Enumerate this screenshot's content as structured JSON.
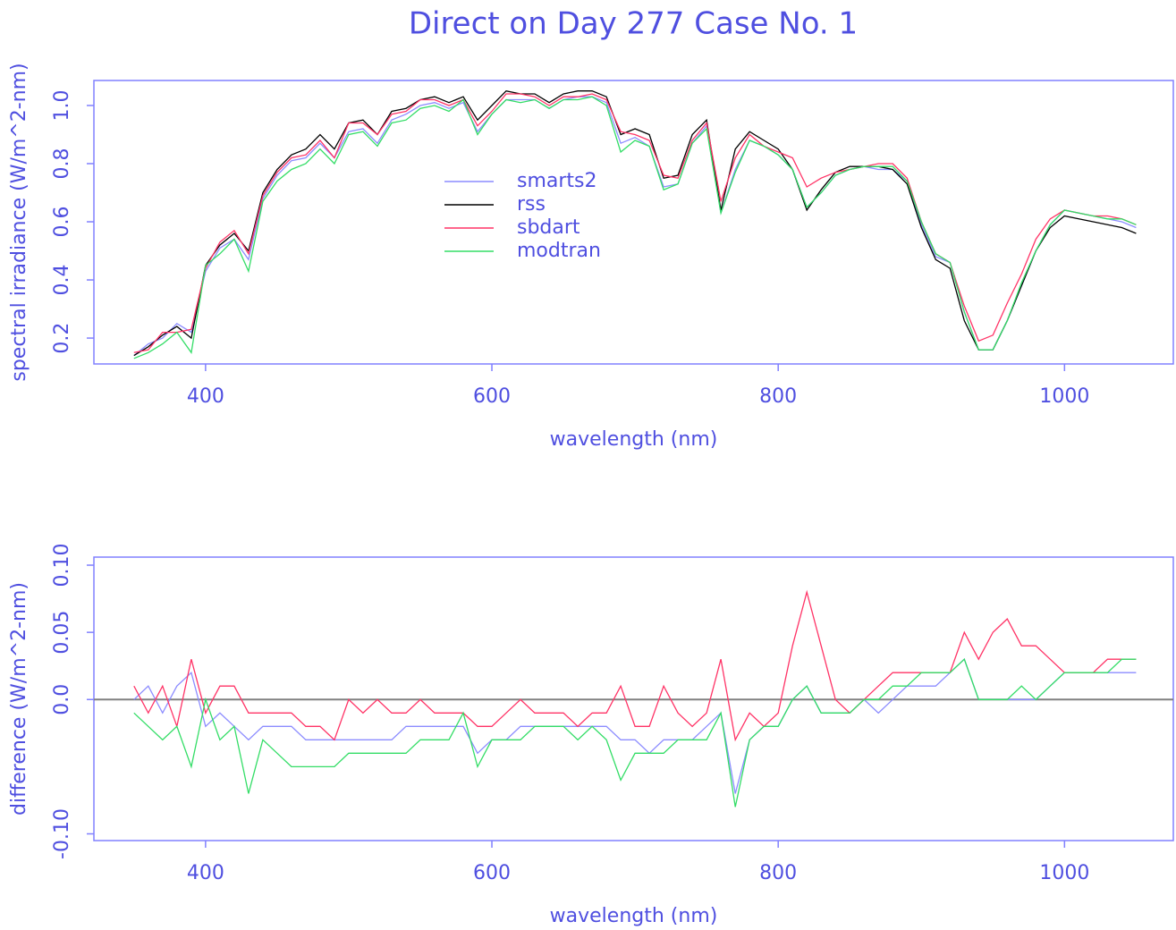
{
  "chart_data": [
    {
      "type": "line",
      "title": "Direct on Day 277 Case No. 1",
      "xlabel": "wavelength (nm)",
      "ylabel": "spectral irradiance (W/m^2-nm)",
      "x": [
        350,
        360,
        370,
        380,
        390,
        400,
        410,
        420,
        430,
        440,
        450,
        460,
        470,
        480,
        490,
        500,
        510,
        520,
        530,
        540,
        550,
        560,
        570,
        580,
        590,
        600,
        610,
        620,
        630,
        640,
        650,
        660,
        670,
        680,
        690,
        700,
        710,
        720,
        730,
        740,
        750,
        760,
        770,
        780,
        790,
        800,
        810,
        820,
        830,
        840,
        850,
        860,
        870,
        880,
        890,
        900,
        910,
        920,
        930,
        940,
        950,
        960,
        970,
        980,
        990,
        1000,
        1010,
        1020,
        1030,
        1040,
        1050
      ],
      "xlim": [
        322,
        1076
      ],
      "xticks": [
        400,
        600,
        800,
        1000
      ],
      "ylim": [
        0.111,
        1.086
      ],
      "yticks": [
        0.2,
        0.4,
        0.6,
        0.8,
        {
          "value": 1,
          "label": "1.0"
        }
      ],
      "legend": "center",
      "series": [
        {
          "name": "smarts2",
          "color": "#8c8cff",
          "values": [
            0.14,
            0.18,
            0.2,
            0.25,
            0.22,
            0.43,
            0.51,
            0.54,
            0.47,
            0.68,
            0.76,
            0.81,
            0.82,
            0.87,
            0.82,
            0.91,
            0.92,
            0.87,
            0.95,
            0.97,
            1.0,
            1.01,
            0.99,
            1.01,
            0.91,
            0.97,
            1.02,
            1.02,
            1.02,
            0.99,
            1.02,
            1.03,
            1.03,
            1.01,
            0.87,
            0.89,
            0.86,
            0.72,
            0.73,
            0.87,
            0.93,
            0.63,
            0.78,
            0.88,
            0.86,
            0.83,
            0.78,
            0.65,
            0.7,
            0.76,
            0.78,
            0.79,
            0.78,
            0.78,
            0.74,
            0.59,
            0.48,
            0.46,
            0.29,
            0.16,
            0.16,
            0.26,
            0.38,
            0.5,
            0.59,
            0.64,
            0.63,
            0.62,
            0.61,
            0.6,
            0.58
          ]
        },
        {
          "name": "rss",
          "color": "#000000",
          "values": [
            0.14,
            0.17,
            0.21,
            0.24,
            0.2,
            0.45,
            0.52,
            0.56,
            0.5,
            0.7,
            0.78,
            0.83,
            0.85,
            0.9,
            0.85,
            0.94,
            0.95,
            0.9,
            0.98,
            0.99,
            1.02,
            1.03,
            1.01,
            1.03,
            0.95,
            1.0,
            1.05,
            1.04,
            1.04,
            1.01,
            1.04,
            1.05,
            1.05,
            1.03,
            0.9,
            0.92,
            0.9,
            0.75,
            0.76,
            0.9,
            0.95,
            0.64,
            0.85,
            0.91,
            0.88,
            0.85,
            0.78,
            0.64,
            0.71,
            0.77,
            0.79,
            0.79,
            0.79,
            0.78,
            0.73,
            0.58,
            0.47,
            0.44,
            0.26,
            0.16,
            0.16,
            0.26,
            0.38,
            0.5,
            0.58,
            0.62,
            0.61,
            0.6,
            0.59,
            0.58,
            0.56
          ]
        },
        {
          "name": "sbdart",
          "color": "#ff3366",
          "values": [
            0.15,
            0.16,
            0.22,
            0.22,
            0.23,
            0.44,
            0.53,
            0.57,
            0.49,
            0.69,
            0.77,
            0.82,
            0.83,
            0.88,
            0.82,
            0.94,
            0.94,
            0.9,
            0.97,
            0.98,
            1.02,
            1.02,
            1.0,
            1.02,
            0.93,
            0.98,
            1.04,
            1.04,
            1.03,
            1.0,
            1.03,
            1.03,
            1.04,
            1.02,
            0.91,
            0.9,
            0.88,
            0.76,
            0.75,
            0.88,
            0.94,
            0.67,
            0.82,
            0.9,
            0.86,
            0.84,
            0.82,
            0.72,
            0.75,
            0.77,
            0.78,
            0.79,
            0.8,
            0.8,
            0.75,
            0.6,
            0.49,
            0.46,
            0.31,
            0.19,
            0.21,
            0.32,
            0.42,
            0.54,
            0.61,
            0.64,
            0.63,
            0.62,
            0.62,
            0.61,
            0.59
          ]
        },
        {
          "name": "modtran",
          "color": "#33dd66",
          "values": [
            0.13,
            0.15,
            0.18,
            0.22,
            0.15,
            0.45,
            0.49,
            0.54,
            0.43,
            0.67,
            0.74,
            0.78,
            0.8,
            0.85,
            0.8,
            0.9,
            0.91,
            0.86,
            0.94,
            0.95,
            0.99,
            1.0,
            0.98,
            1.02,
            0.9,
            0.97,
            1.02,
            1.01,
            1.02,
            0.99,
            1.02,
            1.02,
            1.03,
            1.0,
            0.84,
            0.88,
            0.86,
            0.71,
            0.73,
            0.87,
            0.92,
            0.63,
            0.77,
            0.88,
            0.86,
            0.83,
            0.78,
            0.65,
            0.7,
            0.76,
            0.78,
            0.79,
            0.79,
            0.79,
            0.74,
            0.6,
            0.49,
            0.46,
            0.29,
            0.16,
            0.16,
            0.26,
            0.39,
            0.5,
            0.59,
            0.64,
            0.63,
            0.62,
            0.61,
            0.61,
            0.59
          ]
        }
      ]
    },
    {
      "type": "line",
      "xlabel": "wavelength (nm)",
      "ylabel": "difference (W/m^2-nm)",
      "x": [
        350,
        360,
        370,
        380,
        390,
        400,
        410,
        420,
        430,
        440,
        450,
        460,
        470,
        480,
        490,
        500,
        510,
        520,
        530,
        540,
        550,
        560,
        570,
        580,
        590,
        600,
        610,
        620,
        630,
        640,
        650,
        660,
        670,
        680,
        690,
        700,
        710,
        720,
        730,
        740,
        750,
        760,
        770,
        780,
        790,
        800,
        810,
        820,
        830,
        840,
        850,
        860,
        870,
        880,
        890,
        900,
        910,
        920,
        930,
        940,
        950,
        960,
        970,
        980,
        990,
        1000,
        1010,
        1020,
        1030,
        1040,
        1050
      ],
      "xlim": [
        322,
        1076
      ],
      "xticks": [
        400,
        600,
        800,
        1000
      ],
      "ylim": [
        -0.105,
        0.106
      ],
      "yticks": [
        {
          "value": -0.1,
          "label": "-0.10"
        },
        {
          "value": 0,
          "label": "0.0"
        },
        0.05,
        {
          "value": 0.1,
          "label": "0.10"
        }
      ],
      "hline": 0,
      "hline_color": "#808080",
      "series": [
        {
          "color": "#8c8cff",
          "values": [
            0,
            0.01,
            -0.01,
            0.01,
            0.02,
            -0.02,
            -0.01,
            -0.02,
            -0.03,
            -0.02,
            -0.02,
            -0.02,
            -0.03,
            -0.03,
            -0.03,
            -0.03,
            -0.03,
            -0.03,
            -0.03,
            -0.02,
            -0.02,
            -0.02,
            -0.02,
            -0.02,
            -0.04,
            -0.03,
            -0.03,
            -0.02,
            -0.02,
            -0.02,
            -0.02,
            -0.02,
            -0.02,
            -0.02,
            -0.03,
            -0.03,
            -0.04,
            -0.03,
            -0.03,
            -0.03,
            -0.02,
            -0.01,
            -0.07,
            -0.03,
            -0.02,
            -0.02,
            0,
            0.01,
            -0.01,
            -0.01,
            -0.01,
            0,
            -0.01,
            0,
            0.01,
            0.01,
            0.01,
            0.02,
            0.03,
            0,
            0,
            0,
            0,
            0,
            0.01,
            0.02,
            0.02,
            0.02,
            0.02,
            0.02,
            0.02
          ]
        },
        {
          "color": "#ff3366",
          "values": [
            0.01,
            -0.01,
            0.01,
            -0.02,
            0.03,
            -0.01,
            0.01,
            0.01,
            -0.01,
            -0.01,
            -0.01,
            -0.01,
            -0.02,
            -0.02,
            -0.03,
            0,
            -0.01,
            0,
            -0.01,
            -0.01,
            0,
            -0.01,
            -0.01,
            -0.01,
            -0.02,
            -0.02,
            -0.01,
            0,
            -0.01,
            -0.01,
            -0.01,
            -0.02,
            -0.01,
            -0.01,
            0.01,
            -0.02,
            -0.02,
            0.01,
            -0.01,
            -0.02,
            -0.01,
            0.03,
            -0.03,
            -0.01,
            -0.02,
            -0.01,
            0.04,
            0.08,
            0.04,
            0,
            -0.01,
            0,
            0.01,
            0.02,
            0.02,
            0.02,
            0.02,
            0.02,
            0.05,
            0.03,
            0.05,
            0.06,
            0.04,
            0.04,
            0.03,
            0.02,
            0.02,
            0.02,
            0.03,
            0.03,
            0.03
          ]
        },
        {
          "color": "#33dd66",
          "values": [
            -0.01,
            -0.02,
            -0.03,
            -0.02,
            -0.05,
            0,
            -0.03,
            -0.02,
            -0.07,
            -0.03,
            -0.04,
            -0.05,
            -0.05,
            -0.05,
            -0.05,
            -0.04,
            -0.04,
            -0.04,
            -0.04,
            -0.04,
            -0.03,
            -0.03,
            -0.03,
            -0.01,
            -0.05,
            -0.03,
            -0.03,
            -0.03,
            -0.02,
            -0.02,
            -0.02,
            -0.03,
            -0.02,
            -0.03,
            -0.06,
            -0.04,
            -0.04,
            -0.04,
            -0.03,
            -0.03,
            -0.03,
            -0.01,
            -0.08,
            -0.03,
            -0.02,
            -0.02,
            0,
            0.01,
            -0.01,
            -0.01,
            -0.01,
            0,
            0,
            0.01,
            0.01,
            0.02,
            0.02,
            0.02,
            0.03,
            0,
            0,
            0,
            0.01,
            0,
            0.01,
            0.02,
            0.02,
            0.02,
            0.02,
            0.03,
            0.03
          ]
        }
      ]
    }
  ]
}
